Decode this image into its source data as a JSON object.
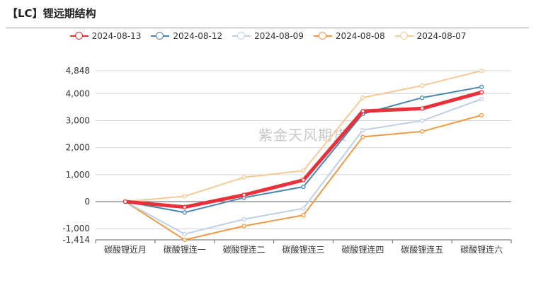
{
  "title": "【LC】锂远期结构",
  "watermark": "紫金天风期货",
  "chart_data": {
    "type": "line",
    "categories": [
      "碳酸锂近月",
      "碳酸锂连一",
      "碳酸锂连二",
      "碳酸锂连三",
      "碳酸锂连四",
      "碳酸锂连五",
      "碳酸锂连六"
    ],
    "ylim": [
      -1414,
      4848
    ],
    "yticks": [
      -1414,
      -1000,
      0,
      1000,
      2000,
      3000,
      4000,
      4848
    ],
    "ytick_labels": [
      "-1,414",
      "-1,000",
      "0",
      "1,000",
      "2,000",
      "3,000",
      "4,000",
      "4,848"
    ],
    "grid": true,
    "legend_position": "top",
    "series": [
      {
        "name": "2024-08-13",
        "color": "#e8313a",
        "values": [
          0,
          -200,
          250,
          800,
          3350,
          3450,
          4050
        ]
      },
      {
        "name": "2024-08-12",
        "color": "#4a86ad",
        "values": [
          0,
          -400,
          150,
          550,
          3250,
          3850,
          4250
        ]
      },
      {
        "name": "2024-08-09",
        "color": "#bdd0e8",
        "values": [
          0,
          -1200,
          -650,
          -250,
          2650,
          3000,
          3800
        ]
      },
      {
        "name": "2024-08-08",
        "color": "#ef9a42",
        "values": [
          0,
          -1414,
          -900,
          -500,
          2400,
          2600,
          3200
        ]
      },
      {
        "name": "2024-08-07",
        "color": "#f7c995",
        "values": [
          0,
          200,
          900,
          1150,
          3850,
          4300,
          4848
        ]
      }
    ]
  }
}
